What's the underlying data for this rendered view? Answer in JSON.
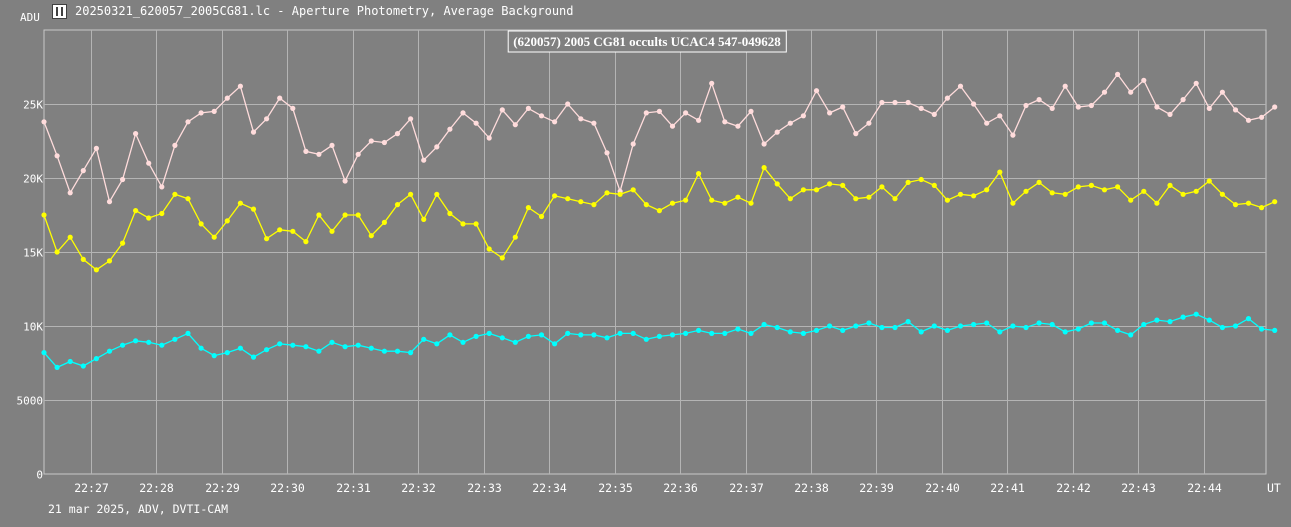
{
  "window": {
    "title": "20250321_620057_2005CG81.lc - Aperture Photometry, Average Background",
    "footer": "21 mar 2025, ADV, DVTI-CAM"
  },
  "chart_data": {
    "type": "line",
    "title": "(620057) 2005 CG81 occults UCAC4 547-049628",
    "ylabel": "ADU",
    "xlabel": "UT",
    "ylim": [
      0,
      30000
    ],
    "xlim": [
      "22:26:17",
      "22:44:57"
    ],
    "y_ticks": [
      {
        "value": 0,
        "label": "0"
      },
      {
        "value": 5000,
        "label": "5000"
      },
      {
        "value": 10000,
        "label": "10K"
      },
      {
        "value": 15000,
        "label": "15K"
      },
      {
        "value": 20000,
        "label": "20K"
      },
      {
        "value": 25000,
        "label": "25K"
      }
    ],
    "x_ticks": [
      "22:27",
      "22:28",
      "22:29",
      "22:30",
      "22:31",
      "22:32",
      "22:33",
      "22:34",
      "22:35",
      "22:36",
      "22:37",
      "22:38",
      "22:39",
      "22:40",
      "22:41",
      "22:42",
      "22:43",
      "22:44"
    ],
    "grid": true,
    "legend": "none",
    "series": [
      {
        "color": "#ffdcdc",
        "x_time_step_s": 12,
        "values": [
          23800,
          21500,
          19000,
          20500,
          22000,
          18400,
          19900,
          23000,
          21000,
          19400,
          22200,
          23800,
          24400,
          24500,
          25400,
          26200,
          23100,
          24000,
          25400,
          24700,
          21800,
          21600,
          22200,
          19800,
          21600,
          22500,
          22400,
          23000,
          24000,
          21200,
          22100,
          23300,
          24400,
          23700,
          22700,
          24600,
          23600,
          24700,
          24200,
          23800,
          25000,
          24000,
          23700,
          21700,
          19100,
          22300,
          24400,
          24500,
          23500,
          24400,
          23900,
          26400,
          23800,
          23500,
          24500,
          22300,
          23100,
          23700,
          24200,
          25900,
          24400,
          24800,
          23000,
          23700,
          25100,
          25100,
          25100,
          24700,
          24300,
          25400,
          26200,
          25000,
          23700,
          24200,
          22900,
          24900,
          25300,
          24700,
          26200,
          24800,
          24900,
          25800,
          27000,
          25800,
          26600,
          24800,
          24300,
          25300,
          26400,
          24700,
          25800,
          24600,
          23900,
          24100,
          24800
        ]
      },
      {
        "color": "#ffff00",
        "x_time_step_s": 12,
        "values": [
          17500,
          15000,
          16000,
          14500,
          13800,
          14400,
          15600,
          17800,
          17300,
          17600,
          18900,
          18600,
          16900,
          16000,
          17100,
          18300,
          17900,
          15900,
          16500,
          16400,
          15700,
          17500,
          16400,
          17500,
          17500,
          16100,
          17000,
          18200,
          18900,
          17200,
          18900,
          17600,
          16900,
          16900,
          15200,
          14600,
          16000,
          18000,
          17400,
          18800,
          18600,
          18400,
          18200,
          19000,
          18900,
          19200,
          18200,
          17800,
          18300,
          18500,
          20300,
          18500,
          18300,
          18700,
          18300,
          20700,
          19600,
          18600,
          19200,
          19200,
          19600,
          19500,
          18600,
          18700,
          19400,
          18600,
          19700,
          19900,
          19500,
          18500,
          18900,
          18800,
          19200,
          20400,
          18300,
          19100,
          19700,
          19000,
          18900,
          19400,
          19500,
          19200,
          19400,
          18500,
          19100,
          18300,
          19500,
          18900,
          19100,
          19800,
          18900,
          18200,
          18300,
          18000,
          18400
        ]
      },
      {
        "color": "#00ffff",
        "x_time_step_s": 12,
        "values": [
          8200,
          7200,
          7600,
          7300,
          7800,
          8300,
          8700,
          9000,
          8900,
          8700,
          9100,
          9500,
          8500,
          8000,
          8200,
          8500,
          7900,
          8400,
          8800,
          8700,
          8600,
          8300,
          8900,
          8600,
          8700,
          8500,
          8300,
          8300,
          8200,
          9100,
          8800,
          9400,
          8900,
          9300,
          9500,
          9200,
          8900,
          9300,
          9400,
          8800,
          9500,
          9400,
          9400,
          9200,
          9500,
          9500,
          9100,
          9300,
          9400,
          9500,
          9700,
          9500,
          9500,
          9800,
          9500,
          10100,
          9900,
          9600,
          9500,
          9700,
          10000,
          9700,
          10000,
          10200,
          9900,
          9900,
          10300,
          9600,
          10000,
          9700,
          10000,
          10100,
          10200,
          9600,
          10000,
          9900,
          10200,
          10100,
          9600,
          9800,
          10200,
          10200,
          9700,
          9400,
          10100,
          10400,
          10300,
          10600,
          10800,
          10400,
          9900,
          10000,
          10500,
          9800,
          9700
        ]
      }
    ]
  }
}
